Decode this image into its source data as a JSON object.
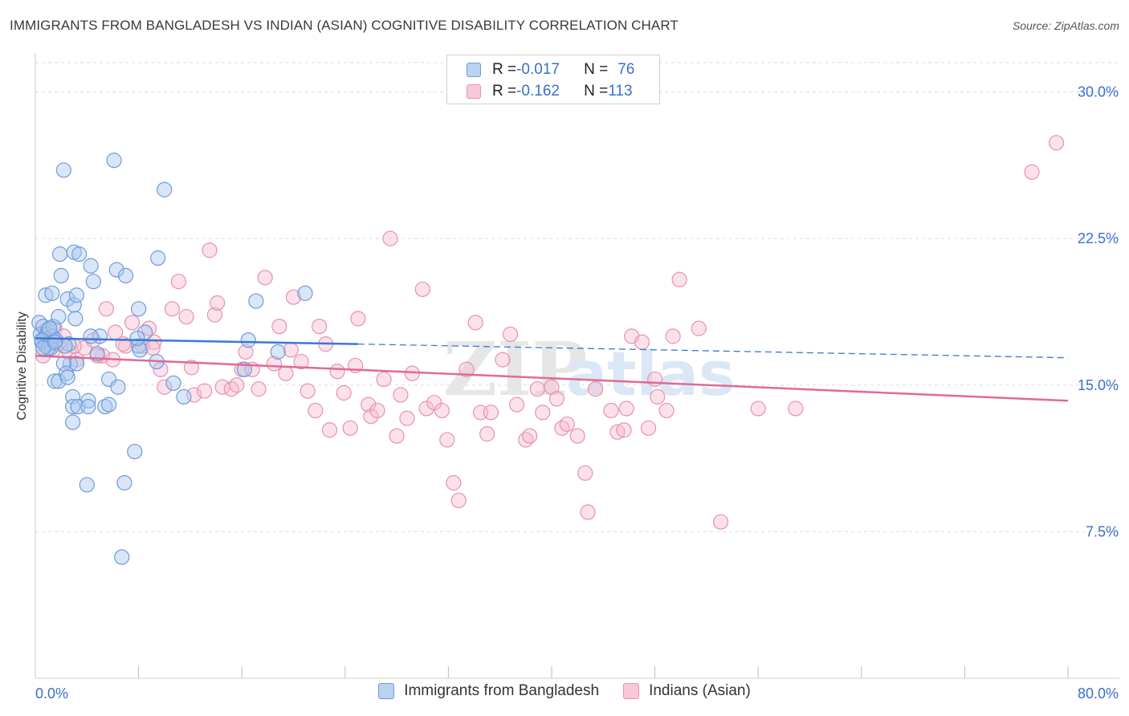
{
  "header": {
    "title": "IMMIGRANTS FROM BANGLADESH VS INDIAN (ASIAN) COGNITIVE DISABILITY CORRELATION CHART",
    "source": "Source: ZipAtlas.com"
  },
  "legend_stats": {
    "rows": [
      {
        "r_label": "R = ",
        "r_value": "-0.017",
        "n_label": "N = ",
        "n_value": "76"
      },
      {
        "r_label": "R = ",
        "r_value": "-0.162",
        "n_label": "N = ",
        "n_value": "113"
      }
    ]
  },
  "watermark": {
    "zip": "ZIP",
    "atlas": "atlas"
  },
  "colors": {
    "blue_fill": "#a9c8f0",
    "blue_stroke": "#6f9bd8",
    "blue_line": "#3a78d4",
    "pink_fill": "#f6bcd0",
    "pink_stroke": "#e891b0",
    "pink_line": "#e06a95",
    "tick_text": "#3b6fc9",
    "grid": "#dddddd"
  },
  "chart_data": {
    "type": "scatter",
    "title": "IMMIGRANTS FROM BANGLADESH VS INDIAN (ASIAN) COGNITIVE DISABILITY CORRELATION CHART",
    "xlabel": "",
    "ylabel": "Cognitive Disability",
    "xlim": [
      0,
      80
    ],
    "ylim": [
      0,
      31.5
    ],
    "x_tick_labels": [
      "0.0%",
      "80.0%"
    ],
    "y_ticks": [
      7.5,
      15.0,
      22.5,
      30.0
    ],
    "y_tick_labels": [
      "7.5%",
      "15.0%",
      "22.5%",
      "30.0%"
    ],
    "grid": "horizontal dashed",
    "legend_position": "top-center",
    "series": [
      {
        "name": "Immigrants from Bangladesh",
        "color": "#6f9bd8",
        "trend": {
          "x0": 0.0,
          "y0": 17.4,
          "x_solid_end": 25.0,
          "y_solid_end": 17.1,
          "x1": 80.0,
          "y1": 16.4
        },
        "points": [
          [
            0.3,
            18.2
          ],
          [
            0.4,
            17.6
          ],
          [
            0.5,
            17.2
          ],
          [
            0.6,
            18.0
          ],
          [
            0.7,
            17.4
          ],
          [
            0.8,
            17.0
          ],
          [
            0.9,
            17.6
          ],
          [
            1.0,
            17.8
          ],
          [
            1.1,
            17.1
          ],
          [
            1.2,
            16.9
          ],
          [
            1.3,
            17.5
          ],
          [
            1.4,
            18.0
          ],
          [
            0.8,
            19.6
          ],
          [
            1.3,
            19.7
          ],
          [
            1.8,
            18.5
          ],
          [
            2.0,
            20.6
          ],
          [
            1.9,
            21.7
          ],
          [
            2.5,
            19.4
          ],
          [
            3.0,
            19.1
          ],
          [
            3.2,
            19.6
          ],
          [
            3.1,
            18.4
          ],
          [
            3.0,
            21.8
          ],
          [
            3.4,
            21.7
          ],
          [
            4.3,
            21.1
          ],
          [
            4.5,
            20.3
          ],
          [
            6.3,
            20.9
          ],
          [
            7.0,
            20.6
          ],
          [
            8.0,
            18.9
          ],
          [
            9.5,
            21.5
          ],
          [
            8.5,
            17.7
          ],
          [
            8.0,
            17.0
          ],
          [
            8.1,
            16.8
          ],
          [
            7.9,
            17.4
          ],
          [
            5.0,
            17.5
          ],
          [
            4.8,
            16.6
          ],
          [
            4.3,
            17.5
          ],
          [
            2.6,
            17.1
          ],
          [
            2.7,
            16.1
          ],
          [
            3.2,
            16.1
          ],
          [
            2.2,
            16.1
          ],
          [
            1.5,
            15.2
          ],
          [
            1.8,
            15.2
          ],
          [
            2.4,
            15.6
          ],
          [
            2.5,
            15.4
          ],
          [
            2.9,
            14.4
          ],
          [
            2.9,
            13.9
          ],
          [
            3.3,
            13.9
          ],
          [
            4.1,
            14.2
          ],
          [
            4.1,
            13.9
          ],
          [
            5.4,
            13.9
          ],
          [
            5.7,
            14.0
          ],
          [
            5.7,
            15.3
          ],
          [
            6.4,
            14.9
          ],
          [
            9.4,
            16.2
          ],
          [
            10.7,
            15.1
          ],
          [
            11.5,
            14.4
          ],
          [
            2.9,
            13.1
          ],
          [
            7.7,
            11.6
          ],
          [
            6.9,
            10.0
          ],
          [
            4.0,
            9.9
          ],
          [
            6.7,
            6.2
          ],
          [
            2.2,
            26.0
          ],
          [
            6.1,
            26.5
          ],
          [
            10.0,
            25.0
          ],
          [
            17.1,
            19.3
          ],
          [
            20.9,
            19.7
          ],
          [
            16.5,
            17.3
          ],
          [
            18.8,
            16.7
          ],
          [
            16.2,
            15.8
          ],
          [
            0.5,
            17.3
          ],
          [
            1.0,
            16.9
          ],
          [
            1.6,
            17.3
          ],
          [
            2.3,
            17.0
          ],
          [
            0.6,
            16.9
          ],
          [
            1.1,
            17.9
          ],
          [
            1.5,
            17.2
          ]
        ]
      },
      {
        "name": "Indians (Asian)",
        "color": "#e891b0",
        "trend": {
          "x0": 0.0,
          "y0": 16.5,
          "x1": 80.0,
          "y1": 14.2
        },
        "points": [
          [
            0.8,
            17.8
          ],
          [
            1.2,
            17.4
          ],
          [
            1.5,
            17.9
          ],
          [
            1.8,
            17.1
          ],
          [
            2.2,
            17.5
          ],
          [
            2.6,
            16.7
          ],
          [
            3.2,
            16.3
          ],
          [
            3.8,
            16.9
          ],
          [
            4.5,
            17.3
          ],
          [
            5.2,
            16.5
          ],
          [
            5.5,
            18.9
          ],
          [
            6.0,
            16.3
          ],
          [
            6.2,
            17.7
          ],
          [
            7.0,
            17.0
          ],
          [
            7.5,
            18.2
          ],
          [
            8.3,
            17.0
          ],
          [
            8.8,
            17.9
          ],
          [
            9.2,
            17.2
          ],
          [
            9.7,
            15.8
          ],
          [
            10.0,
            14.9
          ],
          [
            10.6,
            18.9
          ],
          [
            11.1,
            20.3
          ],
          [
            11.7,
            18.5
          ],
          [
            12.1,
            15.9
          ],
          [
            12.3,
            14.5
          ],
          [
            13.1,
            14.7
          ],
          [
            13.5,
            21.9
          ],
          [
            13.9,
            18.6
          ],
          [
            14.1,
            19.2
          ],
          [
            14.5,
            14.9
          ],
          [
            15.2,
            14.8
          ],
          [
            15.6,
            15.0
          ],
          [
            16.0,
            15.8
          ],
          [
            16.3,
            16.7
          ],
          [
            16.8,
            15.8
          ],
          [
            17.3,
            14.8
          ],
          [
            17.8,
            20.5
          ],
          [
            18.5,
            16.1
          ],
          [
            18.9,
            18.0
          ],
          [
            19.4,
            15.6
          ],
          [
            19.8,
            16.8
          ],
          [
            20.0,
            19.5
          ],
          [
            20.6,
            16.2
          ],
          [
            21.1,
            14.7
          ],
          [
            21.7,
            13.7
          ],
          [
            22.0,
            18.0
          ],
          [
            22.5,
            17.1
          ],
          [
            22.8,
            12.7
          ],
          [
            23.4,
            15.7
          ],
          [
            23.9,
            14.6
          ],
          [
            24.4,
            12.8
          ],
          [
            24.8,
            16.0
          ],
          [
            25.0,
            18.4
          ],
          [
            25.8,
            14.0
          ],
          [
            26.0,
            13.4
          ],
          [
            26.5,
            13.7
          ],
          [
            27.0,
            15.3
          ],
          [
            27.5,
            22.5
          ],
          [
            28.0,
            12.4
          ],
          [
            28.3,
            14.5
          ],
          [
            28.8,
            13.3
          ],
          [
            29.2,
            15.6
          ],
          [
            30.0,
            19.9
          ],
          [
            30.3,
            13.8
          ],
          [
            30.9,
            14.1
          ],
          [
            31.5,
            13.7
          ],
          [
            31.9,
            12.2
          ],
          [
            32.4,
            10.0
          ],
          [
            32.8,
            9.1
          ],
          [
            33.4,
            15.8
          ],
          [
            34.1,
            18.2
          ],
          [
            34.5,
            13.6
          ],
          [
            35.0,
            12.5
          ],
          [
            35.3,
            13.6
          ],
          [
            36.2,
            16.3
          ],
          [
            36.8,
            17.6
          ],
          [
            37.3,
            14.0
          ],
          [
            38.0,
            12.2
          ],
          [
            38.3,
            12.4
          ],
          [
            38.9,
            14.8
          ],
          [
            39.3,
            13.6
          ],
          [
            40.0,
            14.9
          ],
          [
            40.4,
            14.3
          ],
          [
            40.8,
            12.8
          ],
          [
            41.2,
            13.0
          ],
          [
            42.0,
            12.4
          ],
          [
            42.6,
            10.5
          ],
          [
            42.8,
            8.5
          ],
          [
            43.4,
            14.8
          ],
          [
            44.6,
            13.7
          ],
          [
            45.1,
            12.6
          ],
          [
            45.6,
            12.7
          ],
          [
            45.8,
            13.8
          ],
          [
            46.2,
            17.5
          ],
          [
            47.0,
            17.2
          ],
          [
            47.5,
            12.8
          ],
          [
            48.0,
            15.3
          ],
          [
            48.2,
            14.4
          ],
          [
            48.9,
            13.7
          ],
          [
            49.4,
            17.5
          ],
          [
            49.9,
            20.4
          ],
          [
            51.4,
            17.9
          ],
          [
            53.1,
            8.0
          ],
          [
            56.0,
            13.8
          ],
          [
            58.9,
            13.8
          ],
          [
            77.2,
            25.9
          ],
          [
            79.1,
            27.4
          ],
          [
            0.6,
            16.5
          ],
          [
            1.4,
            16.8
          ],
          [
            3.0,
            17.0
          ],
          [
            4.8,
            16.5
          ],
          [
            6.8,
            17.1
          ],
          [
            9.1,
            16.9
          ]
        ]
      }
    ]
  },
  "bottom_legend": {
    "items": [
      {
        "label": "Immigrants from Bangladesh"
      },
      {
        "label": "Indians (Asian)"
      }
    ]
  }
}
